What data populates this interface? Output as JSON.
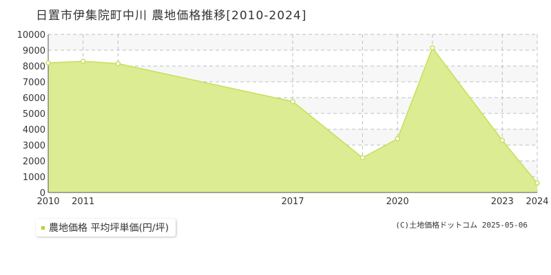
{
  "title": "日置市伊集院町中川 農地価格推移[2010-2024]",
  "legend_label": "農地価格 平均坪単価(円/坪)",
  "credit": "(C)土地価格ドットコム 2025-05-06",
  "colors": {
    "fill": "#dbec93",
    "line": "#c5e05a",
    "grid": "#bfbfbf",
    "band": "#f7f7f7",
    "axis": "#555555",
    "legend_marker": "#b5d334"
  },
  "chart_data": {
    "type": "area",
    "x_tick_labels": [
      "2010",
      "2011",
      "2017",
      "2020",
      "2023",
      "2024"
    ],
    "x_positions": [
      2010,
      2011,
      2012,
      2017,
      2019,
      2020,
      2021,
      2023,
      2024
    ],
    "x_tick_values": [
      2010,
      2011,
      2017,
      2020,
      2023,
      2024
    ],
    "series": [
      {
        "name": "農地価格 平均坪単価(円/坪)",
        "x": [
          2010,
          2011,
          2012,
          2017,
          2019,
          2020,
          2021,
          2023,
          2024
        ],
        "values": [
          8200,
          8300,
          8150,
          5750,
          2200,
          3400,
          9150,
          3300,
          600
        ]
      }
    ],
    "xlim": [
      2010,
      2024
    ],
    "ylim": [
      0,
      10000
    ],
    "y_ticks": [
      0,
      1000,
      2000,
      3000,
      4000,
      5000,
      6000,
      7000,
      8000,
      9000,
      10000
    ],
    "grid": true,
    "legend_position": "bottom-left"
  }
}
